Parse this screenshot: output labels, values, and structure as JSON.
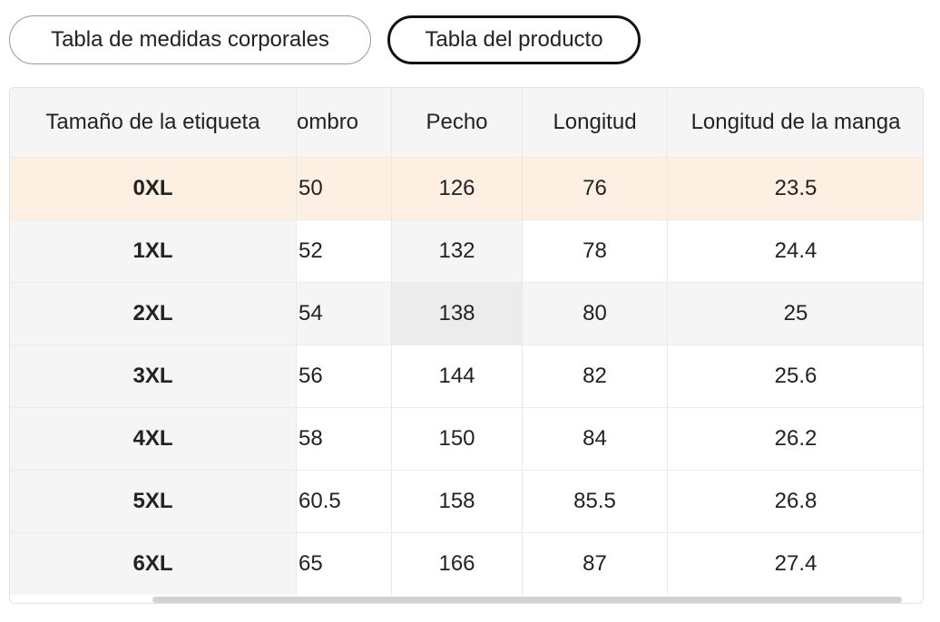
{
  "tabs": [
    {
      "label": "Tabla de medidas corporales",
      "active": false
    },
    {
      "label": "Tabla del producto",
      "active": true
    }
  ],
  "table": {
    "headers": [
      "Tamaño de la etiqueta",
      "ombro",
      "Pecho",
      "Longitud",
      "Longitud de la manga"
    ],
    "rows": [
      [
        "0XL",
        "50",
        "126",
        "76",
        "23.5"
      ],
      [
        "1XL",
        "52",
        "132",
        "78",
        "24.4"
      ],
      [
        "2XL",
        "54",
        "138",
        "80",
        "25"
      ],
      [
        "3XL",
        "56",
        "144",
        "82",
        "25.6"
      ],
      [
        "4XL",
        "58",
        "150",
        "84",
        "26.2"
      ],
      [
        "5XL",
        "60.5",
        "158",
        "85.5",
        "26.8"
      ],
      [
        "6XL",
        "65",
        "166",
        "87",
        "27.4"
      ]
    ],
    "highlight_row_color": "#fdf0e3"
  }
}
